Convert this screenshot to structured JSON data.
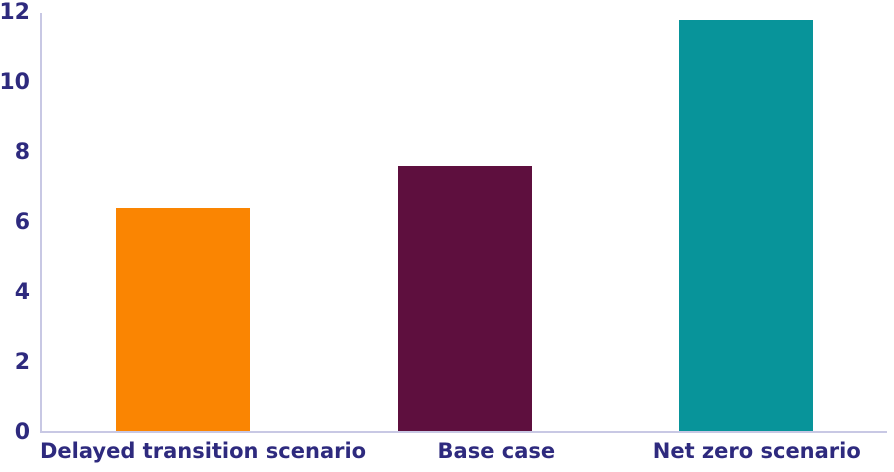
{
  "chart_data": {
    "type": "bar",
    "title": "",
    "xlabel": "",
    "ylabel": "",
    "categories": [
      "Delayed transition scenario",
      "Base case",
      "Net zero scenario"
    ],
    "values": [
      6.4,
      7.6,
      11.8
    ],
    "bar_colors": [
      "#FA8502",
      "#5E0F3E",
      "#08949A"
    ],
    "ylim": [
      0,
      12
    ],
    "yticks": [
      0,
      2,
      4,
      6,
      8,
      10,
      12
    ],
    "grid": "off",
    "legend": "none",
    "axis_line_color": "#C8C8E4",
    "label_color": "#2E2A7E",
    "background_color": "#FFFFFF"
  }
}
